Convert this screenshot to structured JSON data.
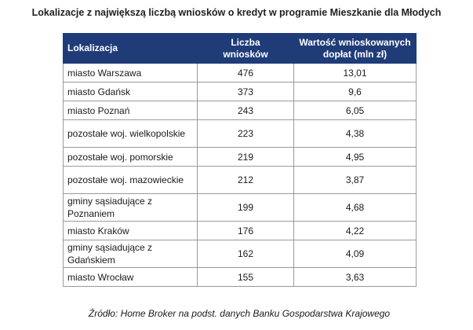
{
  "title": "Lokalizacje z największą liczbą wniosków o kredyt w programie Mieszkanie dla Młodych",
  "table": {
    "headers": {
      "location": "Lokalizacja",
      "count_line1": "Liczba",
      "count_line2": "wniosków",
      "value_line1": "Wartość wnioskowanych",
      "value_line2": "dopłat (mln zł)"
    },
    "rows": [
      {
        "location": "miasto Warszawa",
        "count": "476",
        "value": "13,01"
      },
      {
        "location": "miasto Gdańsk",
        "count": "373",
        "value": "9,6"
      },
      {
        "location": "miasto Poznań",
        "count": "243",
        "value": "6,05"
      },
      {
        "location": "pozostałe woj. wielkopolskie",
        "count": "223",
        "value": "4,38"
      },
      {
        "location": "pozostałe woj. pomorskie",
        "count": "219",
        "value": "4,95"
      },
      {
        "location": "pozostałe woj. mazowieckie",
        "count": "212",
        "value": "3,87"
      },
      {
        "location": "gminy sąsiadujące z Poznaniem",
        "count": "199",
        "value": "4,68"
      },
      {
        "location": "miasto Kraków",
        "count": "176",
        "value": "4,22"
      },
      {
        "location": "gminy sąsiadujące z Gdańskiem",
        "count": "162",
        "value": "4,09"
      },
      {
        "location": "miasto Wrocław",
        "count": "155",
        "value": "3,63"
      }
    ]
  },
  "source": "Źródło: Home Broker na podst. danych Banku Gospodarstwa Krajowego",
  "colors": {
    "header_bg": "#1f3c78",
    "header_text": "#ffffff",
    "border": "#9a9a9a"
  }
}
